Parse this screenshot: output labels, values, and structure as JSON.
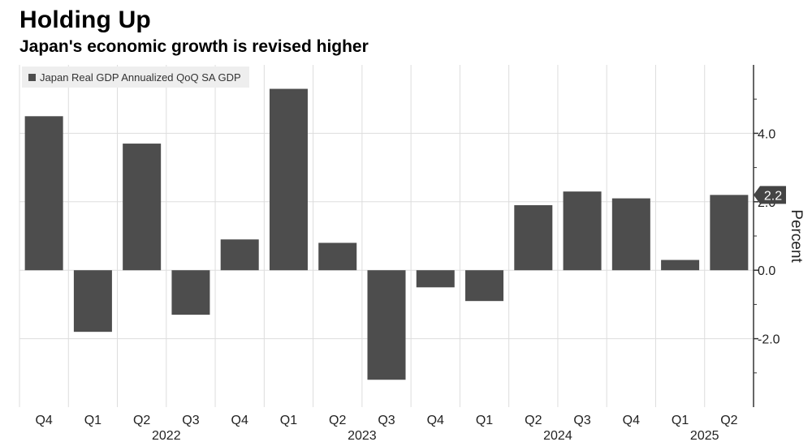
{
  "chart_data": {
    "type": "bar",
    "title": "Holding Up",
    "subtitle": "Japan's economic growth is revised higher",
    "legend": [
      "Japan Real GDP Annualized QoQ SA GDP"
    ],
    "series": [
      {
        "name": "Japan Real GDP Annualized QoQ SA GDP",
        "values": [
          4.5,
          -1.8,
          3.7,
          -1.3,
          0.9,
          5.3,
          0.8,
          -3.2,
          -0.5,
          -0.9,
          1.9,
          2.3,
          2.1,
          0.3,
          2.2
        ]
      }
    ],
    "categories": [
      "Q4",
      "Q1",
      "Q2",
      "Q3",
      "Q4",
      "Q1",
      "Q2",
      "Q3",
      "Q4",
      "Q1",
      "Q2",
      "Q3",
      "Q4",
      "Q1",
      "Q2"
    ],
    "year_labels": [
      {
        "label": "2022",
        "start": 1,
        "end": 4
      },
      {
        "label": "2023",
        "start": 5,
        "end": 8
      },
      {
        "label": "2024",
        "start": 9,
        "end": 12
      },
      {
        "label": "2025",
        "start": 13,
        "end": 14
      }
    ],
    "ylabel": "Percent",
    "ylim": [
      -4,
      6
    ],
    "yticks": [
      {
        "value": 4,
        "label": "4.0"
      },
      {
        "value": 2,
        "label": "2.0"
      },
      {
        "value": 0,
        "label": "0.0"
      },
      {
        "value": -2,
        "label": "-2.0"
      }
    ],
    "last_value_label": "2.2",
    "grid": true,
    "colors": {
      "bar": "#4d4d4d",
      "grid": "#dddddd",
      "tag": "#444444"
    }
  }
}
